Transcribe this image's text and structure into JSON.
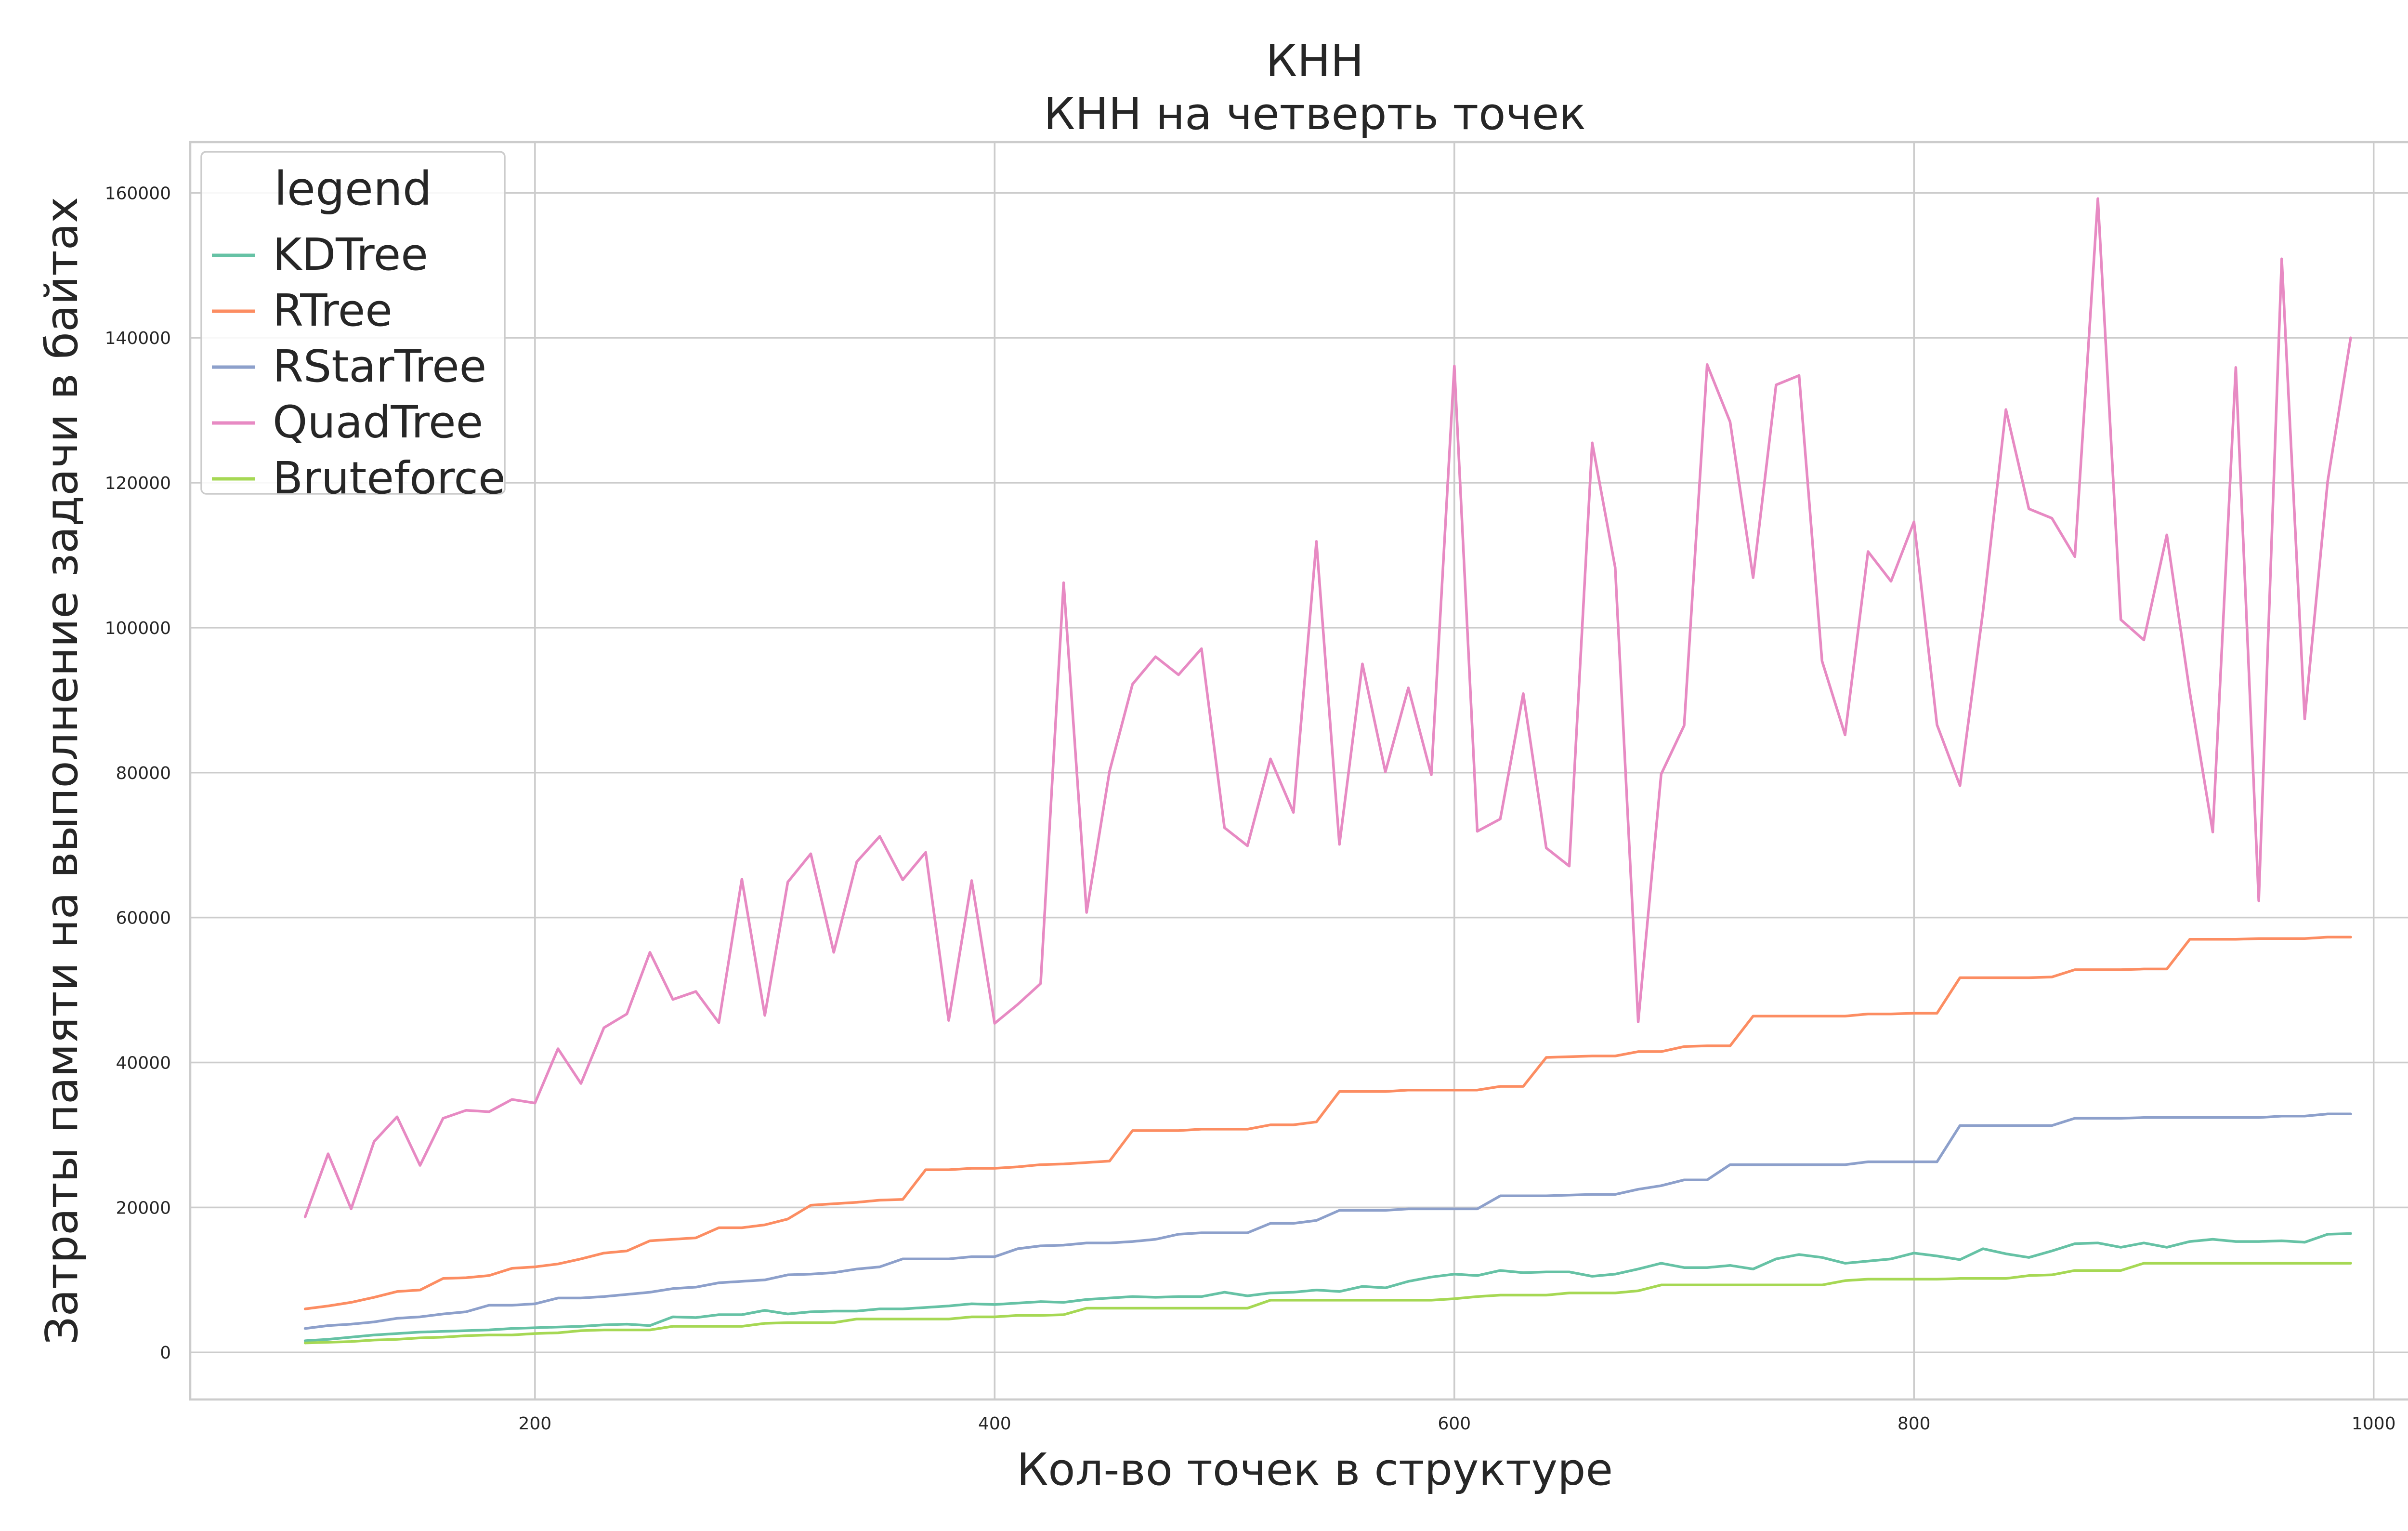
{
  "chart_data": {
    "type": "line",
    "title": "КНН",
    "subtitle": "КНН на четверть точек",
    "xlabel": "Кол-во точек в структуре",
    "ylabel": "Затраты памяти на выполнение задачи в байтах",
    "xlim": [
      50,
      1025
    ],
    "ylim": [
      -6500,
      167000
    ],
    "x_ticks": [
      200,
      400,
      600,
      800,
      1000
    ],
    "x_tick_labels": [
      "200",
      "400",
      "600",
      "800",
      "1000"
    ],
    "y_ticks": [
      0,
      20000,
      40000,
      60000,
      80000,
      100000,
      120000,
      140000,
      160000
    ],
    "y_tick_labels": [
      "0",
      "20000",
      "40000",
      "60000",
      "80000",
      "100000",
      "120000",
      "140000",
      "160000"
    ],
    "grid": true,
    "legend": {
      "title": "legend",
      "placement": "top-left"
    },
    "x": [
      100,
      110,
      120,
      130,
      140,
      150,
      160,
      170,
      180,
      190,
      200,
      210,
      220,
      230,
      240,
      250,
      260,
      270,
      280,
      290,
      300,
      310,
      320,
      330,
      340,
      350,
      360,
      370,
      380,
      390,
      400,
      410,
      420,
      430,
      440,
      450,
      460,
      470,
      480,
      490,
      500,
      510,
      520,
      530,
      540,
      550,
      560,
      570,
      580,
      590,
      600,
      610,
      620,
      630,
      640,
      650,
      660,
      670,
      680,
      690,
      700,
      710,
      720,
      730,
      740,
      750,
      760,
      770,
      780,
      790,
      800,
      810,
      820,
      830,
      840,
      850,
      860,
      870,
      880,
      890,
      900,
      910,
      920,
      930,
      940,
      950,
      960,
      970,
      980,
      990
    ],
    "series": [
      {
        "name": "KDTree",
        "color": "#66c2a5",
        "values": [
          1600,
          1800,
          2100,
          2400,
          2600,
          2800,
          2900,
          3000,
          3100,
          3300,
          3400,
          3500,
          3600,
          3800,
          3900,
          3700,
          4900,
          4800,
          5200,
          5200,
          5800,
          5300,
          5600,
          5700,
          5700,
          6000,
          6000,
          6200,
          6400,
          6700,
          6600,
          6800,
          7000,
          6900,
          7300,
          7500,
          7700,
          7600,
          7700,
          7700,
          8300,
          7800,
          8200,
          8300,
          8600,
          8400,
          9100,
          8900,
          9800,
          10400,
          10800,
          10600,
          11300,
          11000,
          11100,
          11100,
          10500,
          10800,
          11500,
          12300,
          11700,
          11700,
          12000,
          11500,
          12900,
          13500,
          13100,
          12300,
          12600,
          12900,
          13700,
          13300,
          12800,
          14300,
          13600,
          13100,
          14000,
          15000,
          15100,
          14500,
          15100,
          14500,
          15300,
          15600,
          15300,
          15300,
          15400,
          15200,
          16300,
          16400
        ]
      },
      {
        "name": "RTree",
        "color": "#fc8d62",
        "values": [
          6000,
          6400,
          6900,
          7600,
          8400,
          8600,
          10200,
          10300,
          10600,
          11600,
          11800,
          12200,
          12900,
          13700,
          14000,
          15400,
          15600,
          15800,
          17200,
          17200,
          17600,
          18400,
          20300,
          20500,
          20700,
          21000,
          21100,
          25200,
          25200,
          25400,
          25400,
          25600,
          25900,
          26000,
          26200,
          26400,
          30600,
          30600,
          30600,
          30800,
          30800,
          30800,
          31400,
          31400,
          31800,
          36000,
          36000,
          36000,
          36200,
          36200,
          36200,
          36200,
          36700,
          36700,
          40700,
          40800,
          40900,
          40900,
          41500,
          41500,
          42200,
          42300,
          42300,
          46400,
          46400,
          46400,
          46400,
          46400,
          46700,
          46700,
          46800,
          46800,
          51700,
          51700,
          51700,
          51700,
          51800,
          52800,
          52800,
          52800,
          52900,
          52900,
          57000,
          57000,
          57000,
          57100,
          57100,
          57100,
          57300,
          57300
        ]
      },
      {
        "name": "RStarTree",
        "color": "#8da0cb",
        "values": [
          3300,
          3700,
          3900,
          4200,
          4700,
          4900,
          5300,
          5600,
          6500,
          6500,
          6700,
          7500,
          7500,
          7700,
          8000,
          8300,
          8800,
          9000,
          9600,
          9800,
          10000,
          10700,
          10800,
          11000,
          11500,
          11800,
          12900,
          12900,
          12900,
          13200,
          13200,
          14300,
          14700,
          14800,
          15100,
          15100,
          15300,
          15600,
          16300,
          16500,
          16500,
          16500,
          17800,
          17800,
          18200,
          19600,
          19600,
          19600,
          19800,
          19800,
          19800,
          19800,
          21600,
          21600,
          21600,
          21700,
          21800,
          21800,
          22500,
          23000,
          23800,
          23800,
          25900,
          25900,
          25900,
          25900,
          25900,
          25900,
          26300,
          26300,
          26300,
          26300,
          31300,
          31300,
          31300,
          31300,
          31300,
          32300,
          32300,
          32300,
          32400,
          32400,
          32400,
          32400,
          32400,
          32400,
          32600,
          32600,
          32900,
          32900
        ]
      },
      {
        "name": "QuadTree",
        "color": "#e78ac3",
        "values": [
          18700,
          27400,
          19800,
          29100,
          32500,
          25800,
          32300,
          33400,
          33200,
          34900,
          34400,
          41900,
          37100,
          44800,
          46700,
          55200,
          48700,
          49800,
          45500,
          65300,
          46500,
          64900,
          68800,
          55200,
          67700,
          71200,
          65200,
          69000,
          45800,
          65100,
          45400,
          48000,
          50900,
          106200,
          60700,
          80200,
          92200,
          96000,
          93500,
          97100,
          72400,
          69900,
          81900,
          74500,
          111900,
          70100,
          95000,
          80100,
          91700,
          79700,
          136100,
          71900,
          73600,
          90900,
          69600,
          67100,
          125500,
          108300,
          45600,
          79800,
          86500,
          136300,
          128400,
          106900,
          133500,
          134800,
          95400,
          85200,
          110500,
          106400,
          114600,
          86600,
          78200,
          102200,
          130100,
          116400,
          115100,
          109800,
          159200,
          101100,
          98300,
          112800,
          91100,
          71800,
          135900,
          62300,
          150900,
          87400,
          120200,
          140000
        ]
      },
      {
        "name": "Bruteforce",
        "color": "#a6d854",
        "values": [
          1300,
          1400,
          1500,
          1700,
          1800,
          2000,
          2100,
          2300,
          2400,
          2400,
          2600,
          2700,
          3000,
          3100,
          3100,
          3100,
          3600,
          3600,
          3600,
          3600,
          4000,
          4100,
          4100,
          4100,
          4600,
          4600,
          4600,
          4600,
          4600,
          4900,
          4900,
          5100,
          5100,
          5200,
          6100,
          6100,
          6100,
          6100,
          6100,
          6100,
          6100,
          6100,
          7200,
          7200,
          7200,
          7200,
          7200,
          7200,
          7200,
          7200,
          7400,
          7700,
          7900,
          7900,
          7900,
          8200,
          8200,
          8200,
          8500,
          9300,
          9300,
          9300,
          9300,
          9300,
          9300,
          9300,
          9300,
          9900,
          10100,
          10100,
          10100,
          10100,
          10200,
          10200,
          10200,
          10600,
          10700,
          11300,
          11300,
          11300,
          12300,
          12300,
          12300,
          12300,
          12300,
          12300,
          12300,
          12300,
          12300,
          12300
        ]
      }
    ]
  }
}
